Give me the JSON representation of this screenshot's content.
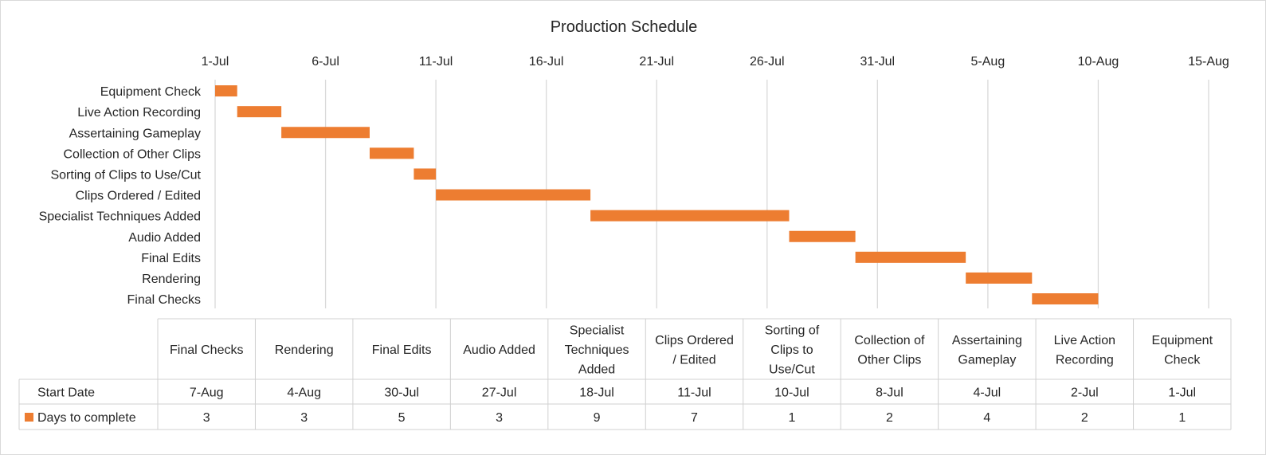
{
  "chart_data": {
    "type": "gantt",
    "title": "Production Schedule",
    "x_ticks": [
      "1-Jul",
      "6-Jul",
      "11-Jul",
      "16-Jul",
      "21-Jul",
      "26-Jul",
      "31-Jul",
      "5-Aug",
      "10-Aug",
      "15-Aug"
    ],
    "xlim": [
      "1-Jul",
      "15-Aug"
    ],
    "gridlines": "vertical",
    "legend": "in data table",
    "series": [
      {
        "name": "Days to complete",
        "color": "#ED7D31",
        "values": [
          3,
          3,
          5,
          3,
          9,
          7,
          1,
          2,
          4,
          2,
          1
        ]
      }
    ],
    "categories": [
      "Final Checks",
      "Rendering",
      "Final Edits",
      "Audio Added",
      "Specialist Techniques Added",
      "Clips Ordered / Edited",
      "Sorting of Clips to Use/Cut",
      "Collection of Other Clips",
      "Assertaining Gameplay",
      "Live Action Recording",
      "Equipment Check"
    ],
    "table_categories": [
      "Final Checks",
      "Rendering",
      "Final Edits",
      "Audio Added",
      "Specialist Techniques Added",
      "Clips Ordered / Edited",
      "Sorting of Clips to Use/Cut",
      "Collection of Other Clips",
      "Assertaining Gameplay",
      "Live Action Recording",
      "Equipment Check"
    ],
    "start_dates": [
      "7-Aug",
      "4-Aug",
      "30-Jul",
      "27-Jul",
      "18-Jul",
      "11-Jul",
      "10-Jul",
      "8-Jul",
      "4-Jul",
      "2-Jul",
      "1-Jul"
    ],
    "start_label": "Start Date",
    "days_label": "Days to complete"
  }
}
